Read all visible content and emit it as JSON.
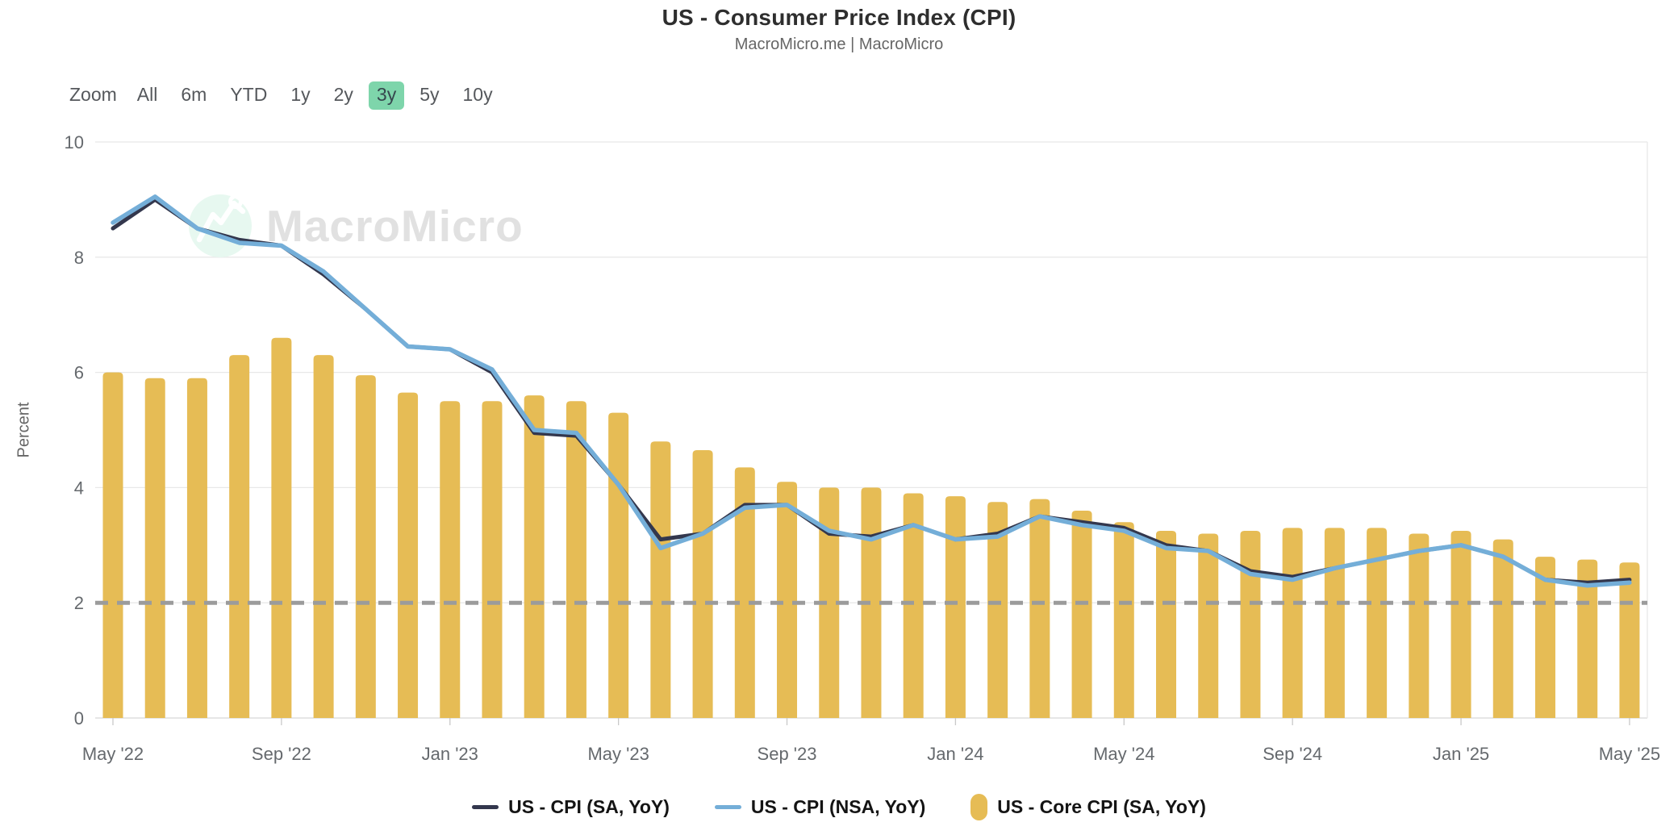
{
  "header": {
    "title": "US - Consumer Price Index (CPI)",
    "subtitle": "MacroMicro.me | MacroMicro"
  },
  "range_selector": {
    "label": "Zoom",
    "options": [
      "All",
      "6m",
      "YTD",
      "1y",
      "2y",
      "3y",
      "5y",
      "10y"
    ],
    "selected": "3y",
    "selected_bg": "#7ed5ab"
  },
  "watermark": {
    "text": "MacroMicro",
    "text_color": "#e1e1e1",
    "circle_color": "#e7f8f0",
    "logo_color": "#ffffff"
  },
  "chart_data": {
    "type": "mixed",
    "title": "US - Consumer Price Index (CPI)",
    "xlabel": "",
    "ylabel": "Percent",
    "ylim": [
      0,
      10
    ],
    "y_ticks": [
      0,
      2,
      4,
      6,
      8,
      10
    ],
    "x_tick_every": 4,
    "grid": true,
    "legend_position": "bottom",
    "reference_line": {
      "value": 2,
      "style": "dashed",
      "color": "#9b9b9b"
    },
    "x": [
      "May '22",
      "Jun '22",
      "Jul '22",
      "Aug '22",
      "Sep '22",
      "Oct '22",
      "Nov '22",
      "Dec '22",
      "Jan '23",
      "Feb '23",
      "Mar '23",
      "Apr '23",
      "May '23",
      "Jun '23",
      "Jul '23",
      "Aug '23",
      "Sep '23",
      "Oct '23",
      "Nov '23",
      "Dec '23",
      "Jan '24",
      "Feb '24",
      "Mar '24",
      "Apr '24",
      "May '24",
      "Jun '24",
      "Jul '24",
      "Aug '24",
      "Sep '24",
      "Oct '24",
      "Nov '24",
      "Dec '24",
      "Jan '25",
      "Feb '25",
      "Mar '25",
      "Apr '25",
      "May '25"
    ],
    "series": [
      {
        "name": "US - CPI (SA, YoY)",
        "type": "line",
        "color": "#33374d",
        "values": [
          8.5,
          9.0,
          8.5,
          8.3,
          8.2,
          7.7,
          7.1,
          6.45,
          6.4,
          6.0,
          4.95,
          4.9,
          4.05,
          3.1,
          3.2,
          3.7,
          3.7,
          3.2,
          3.15,
          3.35,
          3.1,
          3.2,
          3.5,
          3.4,
          3.3,
          3.0,
          2.9,
          2.55,
          2.45,
          2.6,
          2.75,
          2.9,
          3.0,
          2.8,
          2.4,
          2.35,
          2.4
        ]
      },
      {
        "name": "US - CPI (NSA, YoY)",
        "type": "line",
        "color": "#74aed8",
        "values": [
          8.6,
          9.05,
          8.5,
          8.25,
          8.2,
          7.75,
          7.1,
          6.45,
          6.4,
          6.05,
          5.0,
          4.95,
          4.05,
          2.95,
          3.2,
          3.65,
          3.7,
          3.25,
          3.1,
          3.35,
          3.1,
          3.15,
          3.5,
          3.35,
          3.25,
          2.95,
          2.9,
          2.5,
          2.4,
          2.6,
          2.75,
          2.9,
          3.0,
          2.8,
          2.4,
          2.3,
          2.35
        ]
      },
      {
        "name": "US - Core CPI (SA, YoY)",
        "type": "bar",
        "color": "#e6bc55",
        "values": [
          6.0,
          5.9,
          5.9,
          6.3,
          6.6,
          6.3,
          5.95,
          5.65,
          5.5,
          5.5,
          5.6,
          5.5,
          5.3,
          4.8,
          4.65,
          4.35,
          4.1,
          4.0,
          4.0,
          3.9,
          3.85,
          3.75,
          3.8,
          3.6,
          3.4,
          3.25,
          3.2,
          3.25,
          3.3,
          3.3,
          3.3,
          3.2,
          3.25,
          3.1,
          2.8,
          2.75,
          2.7
        ]
      }
    ]
  },
  "style": {
    "grid_color": "#e8e8e8",
    "axis_line_color": "#d8d8d8",
    "tick_mark_color": "#c9c9c9",
    "tick_text_color": "#65696d"
  }
}
